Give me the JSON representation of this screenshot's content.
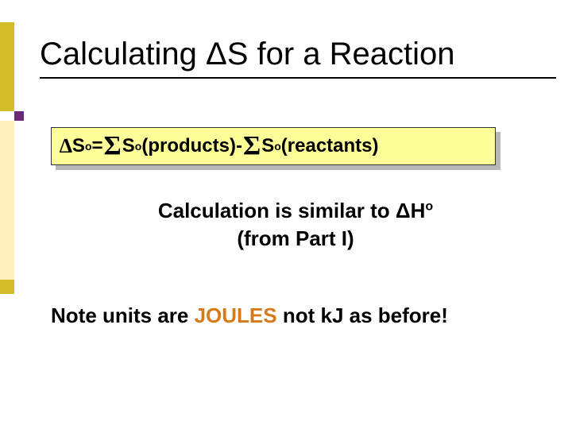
{
  "colors": {
    "accent_gold": "#d3bd28",
    "accent_light": "#ffefbf",
    "accent_purple": "#6a2a77",
    "formula_bg": "#ffff99",
    "formula_shadow": "#b8b8b8",
    "text": "#000000",
    "highlight_orange": "#d77a1a"
  },
  "title": "Calculating ΔS for a Reaction",
  "formula": {
    "delta": "∆",
    "lhs_base": "S",
    "lhs_sup": "o",
    "equals": " = ",
    "sigma": "Σ",
    "term1_pre": " S",
    "term1_sup": "o",
    "term1_post": " (products) ",
    "minus": "- ",
    "term2_pre": " S",
    "term2_sup": "o",
    "term2_post": " (reactants)"
  },
  "calc": {
    "line1_pre": "Calculation is similar to ",
    "deltaH_pre": "ΔH",
    "deltaH_sup": "o",
    "line2": "(from Part I)"
  },
  "note": {
    "pre": "Note units are ",
    "hl": "JOULES",
    "post": " not kJ as before!"
  }
}
